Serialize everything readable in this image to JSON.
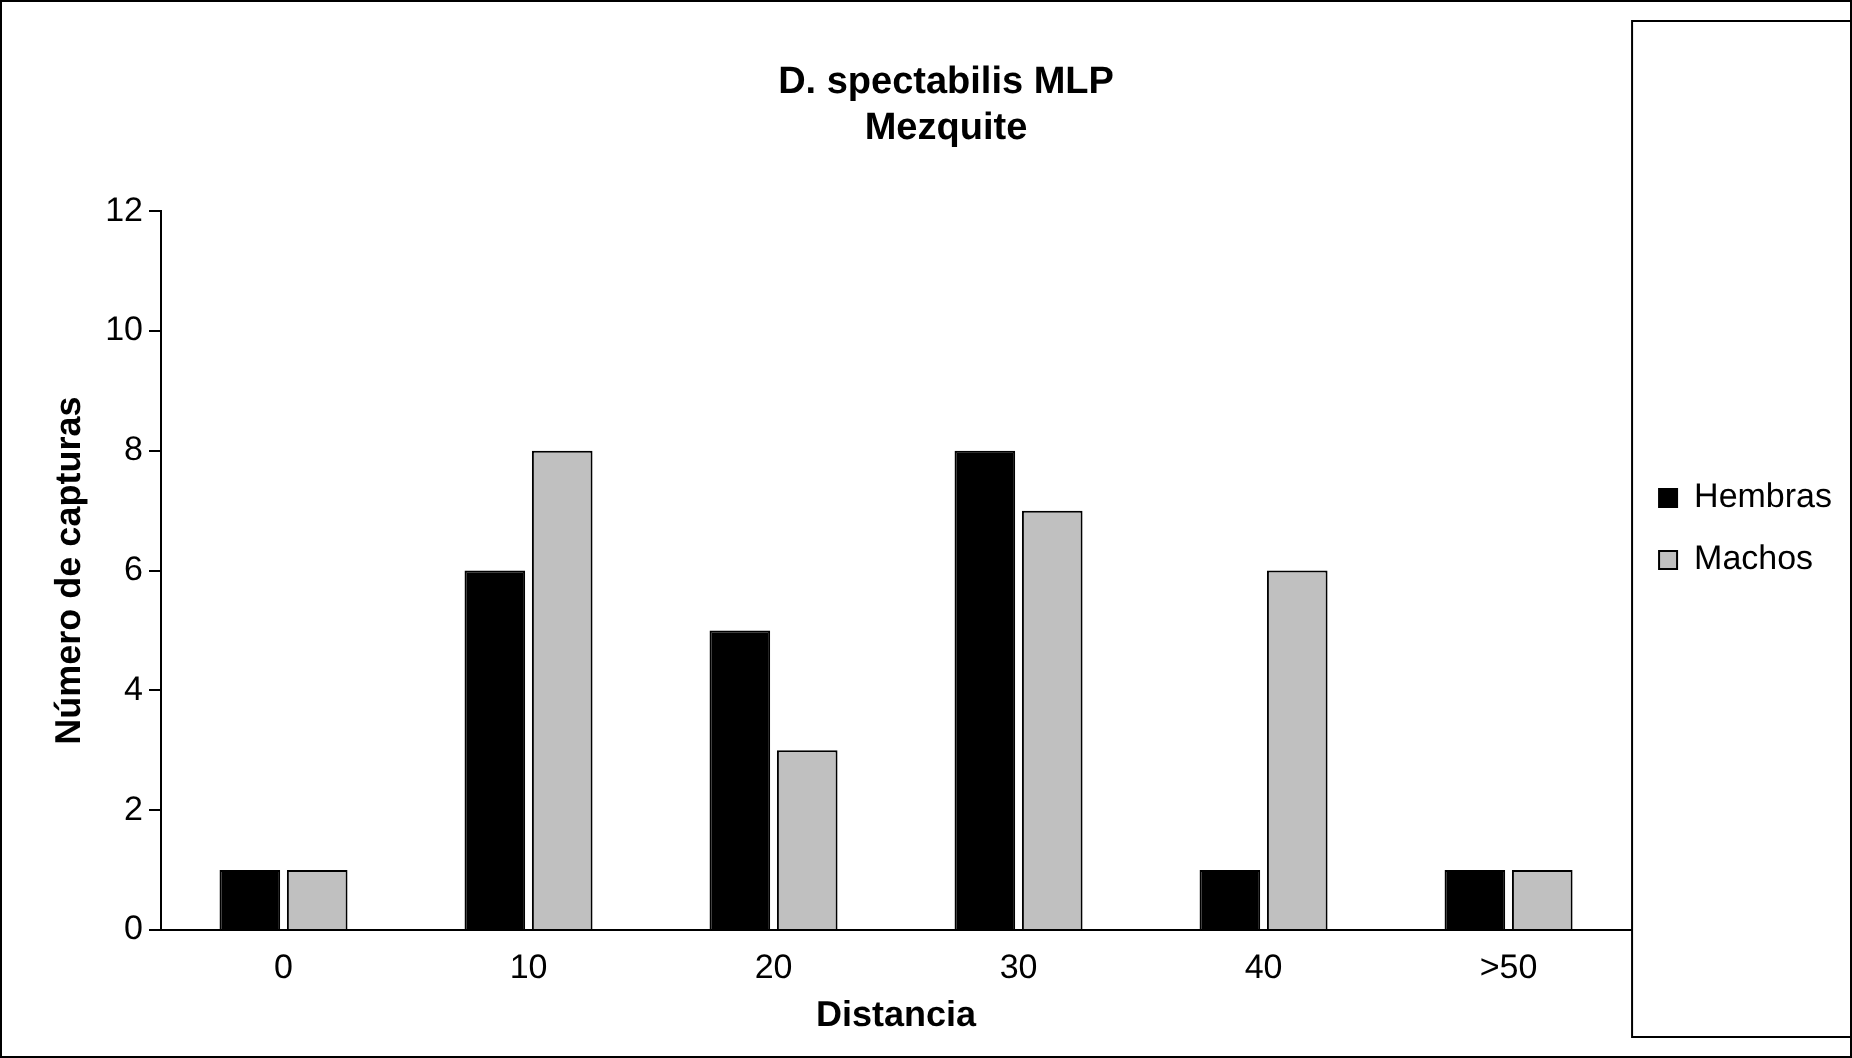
{
  "chart_data": {
    "type": "bar",
    "title": "D. spectabilis MLP\nMezquite",
    "xlabel": "Distancia",
    "ylabel": "Número de capturas",
    "categories": [
      "0",
      "10",
      "20",
      "30",
      "40",
      ">50"
    ],
    "series": [
      {
        "name": "Hembras",
        "color": "#000000",
        "values": [
          1,
          6,
          5,
          8,
          1,
          1
        ]
      },
      {
        "name": "Machos",
        "color": "#c0c0c0",
        "values": [
          1,
          8,
          3,
          7,
          6,
          1
        ]
      }
    ],
    "ylim": [
      0,
      12
    ],
    "yticks": [
      0,
      2,
      4,
      6,
      8,
      10,
      12
    ],
    "grid": false,
    "legend": "right"
  }
}
